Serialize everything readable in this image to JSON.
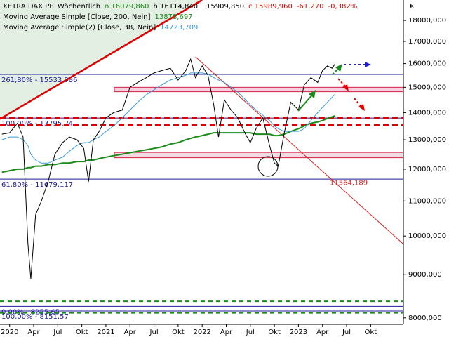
{
  "chart_data": {
    "type": "line",
    "header": {
      "symbol": "XETRA DAX PF",
      "interval": "Wöchentlich",
      "open": "o 16079,860",
      "high": "h 16114,840",
      "low": "l 15909,850",
      "close": "c 15989,960",
      "change": "-61,270",
      "change_pct": "-0,382%"
    },
    "currency": "€",
    "x": [
      2019.92,
      2020.0,
      2020.08,
      2020.14,
      2020.19,
      2020.22,
      2020.27,
      2020.33,
      2020.4,
      2020.47,
      2020.55,
      2020.62,
      2020.7,
      2020.77,
      2020.82,
      2020.87,
      2020.93,
      2021.0,
      2021.08,
      2021.17,
      2021.25,
      2021.33,
      2021.42,
      2021.5,
      2021.58,
      2021.67,
      2021.75,
      2021.83,
      2021.88,
      2021.93,
      2022.0,
      2022.06,
      2022.12,
      2022.17,
      2022.23,
      2022.3,
      2022.37,
      2022.45,
      2022.5,
      2022.56,
      2022.63,
      2022.7,
      2022.75,
      2022.79,
      2022.85,
      2022.92,
      2023.0,
      2023.06,
      2023.13,
      2023.2,
      2023.25,
      2023.3,
      2023.35,
      2023.38
    ],
    "series": [
      {
        "name": "XETRA DAX PF",
        "color": "#000000",
        "values": [
          13200,
          13250,
          13600,
          13100,
          9800,
          8900,
          10600,
          11000,
          11600,
          12500,
          12900,
          13100,
          13000,
          12700,
          11600,
          13000,
          13300,
          13800,
          14000,
          14100,
          15000,
          15200,
          15400,
          15600,
          15700,
          15800,
          15300,
          15700,
          16200,
          15400,
          15900,
          15500,
          14300,
          13100,
          14500,
          14100,
          13800,
          13200,
          12900,
          13400,
          13800,
          12800,
          12200,
          12100,
          13200,
          14400,
          14100,
          15100,
          15400,
          15200,
          15700,
          15900,
          15800,
          15989.96
        ]
      },
      {
        "name": "Moving Average Simple [Close, 200, Nein]",
        "color": "#1a8c1a",
        "last_value_label": "13878,697",
        "values": [
          11900,
          11950,
          12000,
          12000,
          12050,
          12050,
          12100,
          12100,
          12150,
          12150,
          12200,
          12200,
          12250,
          12250,
          12300,
          12300,
          12350,
          12400,
          12450,
          12500,
          12550,
          12600,
          12650,
          12700,
          12750,
          12850,
          12900,
          13000,
          13050,
          13100,
          13150,
          13200,
          13250,
          13250,
          13250,
          13250,
          13250,
          13250,
          13250,
          13200,
          13200,
          13200,
          13150,
          13150,
          13200,
          13300,
          13400,
          13500,
          13600,
          13650,
          13700,
          13780,
          13840,
          13878.697
        ]
      },
      {
        "name": "Moving Average Simple(2) [Close, 38, Nein]",
        "color": "#3a9ad9",
        "last_value_label": "14723,709",
        "values": [
          13000,
          13100,
          13100,
          13000,
          12800,
          12500,
          12300,
          12200,
          12200,
          12300,
          12400,
          12600,
          12800,
          12900,
          12900,
          13000,
          13100,
          13300,
          13500,
          13800,
          14100,
          14400,
          14700,
          14900,
          15100,
          15300,
          15400,
          15500,
          15600,
          15600,
          15600,
          15550,
          15400,
          15300,
          15200,
          15000,
          14800,
          14500,
          14300,
          14100,
          13900,
          13700,
          13500,
          13400,
          13300,
          13300,
          13300,
          13400,
          13700,
          14000,
          14200,
          14400,
          14600,
          14723.709
        ]
      }
    ],
    "xlim": [
      2019.9,
      2024.09
    ],
    "xticks": [
      2020,
      {
        "value": 2020.25,
        "label": "Apr"
      },
      {
        "value": 2020.5,
        "label": "Jul"
      },
      {
        "value": 2020.75,
        "label": "Okt"
      },
      2021,
      {
        "value": 2021.25,
        "label": "Apr"
      },
      {
        "value": 2021.5,
        "label": "Jul"
      },
      {
        "value": 2021.75,
        "label": "Okt"
      },
      2022,
      {
        "value": 2022.25,
        "label": "Apr"
      },
      {
        "value": 2022.5,
        "label": "Jul"
      },
      {
        "value": 2022.75,
        "label": "Okt"
      },
      2023,
      {
        "value": 2023.25,
        "label": "Apr"
      },
      {
        "value": 2023.5,
        "label": "Jul"
      },
      {
        "value": 2023.75,
        "label": "Okt"
      }
    ],
    "ylim": [
      7860,
      19030
    ],
    "log_scale": true,
    "yticks": [
      {
        "value": 8000,
        "label": "8000,000"
      },
      {
        "value": 9000,
        "label": "9000,000"
      },
      {
        "value": 10000,
        "label": "10000,000"
      },
      {
        "value": 11000,
        "label": "11000,000"
      },
      {
        "value": 12000,
        "label": "12000,000"
      },
      {
        "value": 13000,
        "label": "13000,000"
      },
      {
        "value": 14000,
        "label": "14000,000"
      },
      {
        "value": 15000,
        "label": "15000,000"
      },
      {
        "value": 16000,
        "label": "16000,000"
      },
      {
        "value": 17000,
        "label": "17000,000"
      },
      {
        "value": 18000,
        "label": "18000,000"
      }
    ],
    "levels": [
      {
        "label": "261,80% - 15533,986",
        "value": 15533.986
      },
      {
        "label": "100,00% - 13795,24",
        "value": 13795.24
      },
      {
        "label": "61,80% - 11679,117",
        "value": 11679.117
      },
      {
        "label": "0,00% - 8255,65",
        "value": 8255.65
      },
      {
        "label": "100,00% - 8151,57",
        "value": 8151.57
      }
    ],
    "price_label": {
      "label": "11564,189",
      "value": 11564.189
    },
    "zones": [
      {
        "low": 14820,
        "high": 15000
      },
      {
        "low": 12380,
        "high": 12560
      }
    ],
    "red_dashed": [
      13800,
      13530
    ],
    "green_dashed": [
      8370,
      8110
    ],
    "trendlines": [
      {
        "color": "#dd0000",
        "x": [
          2019.9,
          2022.0
        ],
        "y": [
          13760,
          19030
        ]
      },
      {
        "color": "#dd2222",
        "x": [
          2021.93,
          2024.09
        ],
        "y": [
          16300,
          9780
        ]
      }
    ]
  }
}
